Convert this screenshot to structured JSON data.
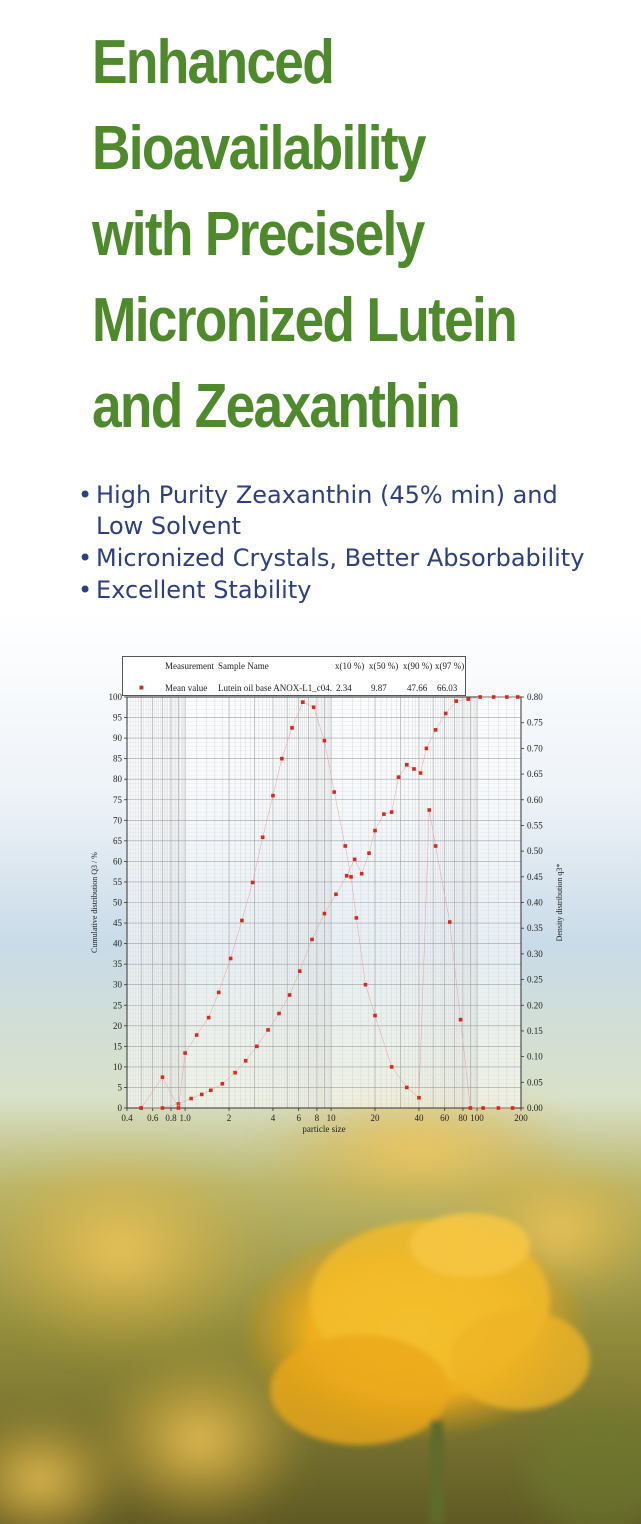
{
  "title_lines": [
    "Enhanced",
    "Bioavailability",
    "with Precisely",
    "Micronized Lutein",
    "and Zeaxanthin"
  ],
  "bullets": [
    {
      "line1": "High Purity Zeaxanthin (45% min) and",
      "line2": "Low Solvent"
    },
    {
      "line1": "Micronized Crystals, Better Absorbability"
    },
    {
      "line1": "Excellent Stability"
    }
  ],
  "bullet_glyph": "•",
  "colors": {
    "title": "#4e8a2c",
    "bullets": "#2e3f7e",
    "points": "#d62a1e",
    "sky": "#c9dbe8",
    "flower": "#f2b320"
  },
  "chart_data": {
    "type": "scatter",
    "xlabel": "particle size",
    "ylabel": "Cumulative distribution Q3 / %",
    "y2label": "Density distribution q3*",
    "x_scale": "log",
    "xlim": [
      0.4,
      200
    ],
    "ylim": [
      0,
      100
    ],
    "y2lim": [
      0,
      0.8
    ],
    "x_ticks": [
      {
        "value": 0.4,
        "label": "0.4"
      },
      {
        "value": 0.6,
        "label": "0.6"
      },
      {
        "value": 0.8,
        "label": "0.8"
      },
      {
        "value": 1.0,
        "label": "1.0"
      },
      {
        "value": 2,
        "label": "2"
      },
      {
        "value": 4,
        "label": "4"
      },
      {
        "value": 6,
        "label": "6"
      },
      {
        "value": 8,
        "label": "8"
      },
      {
        "value": 10,
        "label": "10"
      },
      {
        "value": 20,
        "label": "20"
      },
      {
        "value": 40,
        "label": "40"
      },
      {
        "value": 60,
        "label": "60"
      },
      {
        "value": 80,
        "label": "80"
      },
      {
        "value": 100,
        "label": "100"
      },
      {
        "value": 200,
        "label": "200"
      }
    ],
    "y_ticks": [
      "0",
      "5",
      "10",
      "15",
      "20",
      "25",
      "30",
      "35",
      "40",
      "45",
      "50",
      "55",
      "60",
      "65",
      "70",
      "75",
      "80",
      "85",
      "90",
      "95",
      "100"
    ],
    "y2_ticks": [
      "0.00",
      "0.05",
      "0.10",
      "0.15",
      "0.20",
      "0.25",
      "0.30",
      "0.35",
      "0.40",
      "0.45",
      "0.50",
      "0.55",
      "0.60",
      "0.65",
      "0.70",
      "0.75",
      "0.80"
    ],
    "legend": {
      "header": {
        "col1": "Measurement",
        "col2": "Sample Name",
        "p10": "x(10 %)",
        "p50": "x(50 %)",
        "p90": "x(90 %)",
        "p97": "x(97 %)"
      },
      "row": {
        "col1": "Mean value",
        "col2": "Lutein oil base ANOX-L1_c04.",
        "p10": "2.34",
        "p50": "9.87",
        "p90": "47.66",
        "p97": "66.03"
      }
    },
    "series": [
      {
        "axis": "left",
        "points": [
          [
            0.5,
            0
          ],
          [
            0.7,
            0
          ],
          [
            0.9,
            1
          ],
          [
            1.1,
            2.3
          ],
          [
            1.3,
            3.3
          ],
          [
            1.5,
            4.3
          ],
          [
            1.8,
            5.9
          ],
          [
            2.2,
            8.6
          ],
          [
            2.6,
            11.5
          ],
          [
            3.1,
            15
          ],
          [
            3.7,
            19
          ],
          [
            4.4,
            23
          ],
          [
            5.2,
            27.5
          ],
          [
            6.1,
            33.3
          ],
          [
            7.4,
            41
          ],
          [
            9.0,
            47.3
          ],
          [
            10.8,
            52
          ],
          [
            12.8,
            56.5
          ],
          [
            14.5,
            60.5
          ],
          [
            16.2,
            57
          ],
          [
            18.2,
            62
          ],
          [
            20,
            67.5
          ],
          [
            23,
            71.5
          ],
          [
            26,
            72
          ],
          [
            29,
            80.5
          ],
          [
            33,
            83.5
          ],
          [
            37,
            82.5
          ],
          [
            41,
            81.5
          ],
          [
            45,
            87.5
          ],
          [
            52,
            92
          ],
          [
            61,
            96
          ],
          [
            72,
            99
          ],
          [
            87,
            99.5
          ],
          [
            105,
            100
          ],
          [
            130,
            100
          ],
          [
            160,
            100
          ],
          [
            190,
            100
          ]
        ]
      },
      {
        "axis": "right",
        "points": [
          [
            0.5,
            0
          ],
          [
            0.7,
            0.06
          ],
          [
            0.9,
            0
          ],
          [
            1.0,
            0.107
          ],
          [
            1.2,
            0.142
          ],
          [
            1.45,
            0.176
          ],
          [
            1.7,
            0.225
          ],
          [
            2.05,
            0.291
          ],
          [
            2.45,
            0.365
          ],
          [
            2.9,
            0.439
          ],
          [
            3.4,
            0.527
          ],
          [
            4.0,
            0.608
          ],
          [
            4.6,
            0.68
          ],
          [
            5.4,
            0.74
          ],
          [
            6.4,
            0.79
          ],
          [
            7.6,
            0.78
          ],
          [
            9.0,
            0.715
          ],
          [
            10.5,
            0.615
          ],
          [
            12.5,
            0.51
          ],
          [
            13.7,
            0.45
          ],
          [
            14.9,
            0.37
          ],
          [
            17.2,
            0.24
          ],
          [
            20,
            0.18
          ],
          [
            26,
            0.08
          ],
          [
            33,
            0.04
          ],
          [
            40,
            0.02
          ],
          [
            47,
            0.58
          ],
          [
            52,
            0.51
          ],
          [
            65,
            0.362
          ],
          [
            77,
            0.172
          ],
          [
            90,
            0
          ],
          [
            110,
            0
          ],
          [
            140,
            0
          ],
          [
            175,
            0
          ]
        ]
      }
    ]
  }
}
